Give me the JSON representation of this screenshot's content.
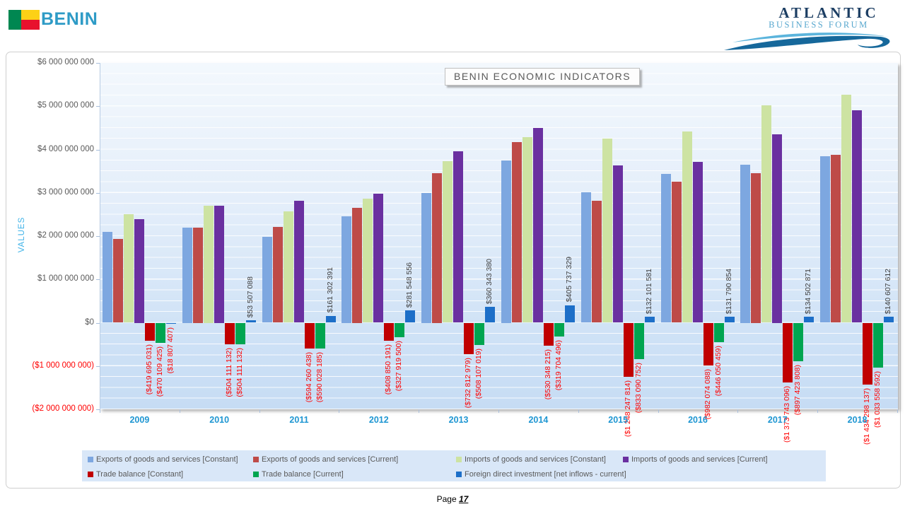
{
  "header": {
    "brand": "BENIN",
    "logo_line1": "ATLANTIC",
    "logo_line2": "BUSINESS FORUM"
  },
  "footer": {
    "page_label": "Page",
    "page_number": "17"
  },
  "chart_data": {
    "type": "bar",
    "title": "BENIN ECONOMIC INDICATORS",
    "ylabel": "VALUES",
    "ylim": [
      -2000000000,
      6000000000
    ],
    "gridline_step": 250000000,
    "grid": true,
    "legend_position": "bottom",
    "y_ticks": [
      {
        "label": "$6 000 000 000",
        "value": 6000000000
      },
      {
        "label": "$5 000 000 000",
        "value": 5000000000
      },
      {
        "label": "$4 000 000 000",
        "value": 4000000000
      },
      {
        "label": "$3 000 000 000",
        "value": 3000000000
      },
      {
        "label": "$2 000 000 000",
        "value": 2000000000
      },
      {
        "label": "$1 000 000 000",
        "value": 1000000000
      },
      {
        "label": "$0",
        "value": 0
      },
      {
        "label": "($1 000 000 000)",
        "value": -1000000000
      },
      {
        "label": "($2 000 000 000)",
        "value": -2000000000
      }
    ],
    "categories": [
      "2009",
      "2010",
      "2011",
      "2012",
      "2013",
      "2014",
      "2015",
      "2016",
      "2017",
      "2018"
    ],
    "series": [
      {
        "name": "Exports of goods and services [Constant]",
        "color": "#7DA7E0",
        "values": [
          2090000000,
          2200000000,
          1980000000,
          2450000000,
          3000000000,
          3750000000,
          3010000000,
          3430000000,
          3650000000,
          3840000000
        ]
      },
      {
        "name": "Exports of goods and services [Current]",
        "color": "#BE4B48",
        "values": [
          1930000000,
          2200000000,
          2220000000,
          2650000000,
          3450000000,
          4170000000,
          2810000000,
          3260000000,
          3450000000,
          3880000000
        ]
      },
      {
        "name": "Imports of goods and services [Constant]",
        "color": "#CDE3A2",
        "values": [
          2510000000,
          2700000000,
          2570000000,
          2860000000,
          3730000000,
          4280000000,
          4260000000,
          4410000000,
          5020000000,
          5270000000
        ]
      },
      {
        "name": "Imports of goods and services [Current]",
        "color": "#6A30A0",
        "values": [
          2400000000,
          2700000000,
          2810000000,
          2980000000,
          3960000000,
          4490000000,
          3640000000,
          3710000000,
          4350000000,
          4910000000
        ]
      },
      {
        "name": "Trade balance [Constant]",
        "color": "#C00000",
        "values": [
          -419695031,
          -504111132,
          -594260438,
          -408850191,
          -732812979,
          -530348215,
          -1248247814,
          -982074088,
          -1373743096,
          -1434298137
        ],
        "data_labels": [
          "($419 695 031)",
          "($504 111 132)",
          "($594 260 438)",
          "($408 850 191)",
          "($732 812 979)",
          "($530 348 215)",
          "($1 248 247 814)",
          "($982 074 088)",
          "($1 373 743 096)",
          "($1 434 298 137)"
        ]
      },
      {
        "name": "Trade balance [Current]",
        "color": "#00A550",
        "values": [
          -470109425,
          -504111132,
          -590028185,
          -327919500,
          -508107019,
          -319704496,
          -833090752,
          -446050459,
          -897423808,
          -1033558592
        ],
        "data_labels": [
          "($470 109 425)",
          "($504 111 132)",
          "($590 028 185)",
          "($327 919 500)",
          "($508 107 019)",
          "($319 704 496)",
          "($833 090 752)",
          "($446 050 459)",
          "($897 423 808)",
          "($1 033 558 592)"
        ]
      },
      {
        "name": "Foreign direct investment [net inflows - current]",
        "color": "#1D6FC8",
        "values": [
          -18807407,
          53507088,
          161302391,
          281548556,
          360343380,
          405737329,
          132101581,
          131790854,
          134502871,
          140607612
        ],
        "data_labels": [
          "($18 807 407)",
          "$53 507 088",
          "$161 302 391",
          "$281 548 556",
          "$360 343 380",
          "$405 737 329",
          "$132 101 581",
          "$131 790 854",
          "$134 502 871",
          "$140 607 612"
        ]
      }
    ],
    "legend_rows": [
      [
        0,
        1,
        2,
        3
      ],
      [
        4,
        5,
        6
      ]
    ]
  }
}
